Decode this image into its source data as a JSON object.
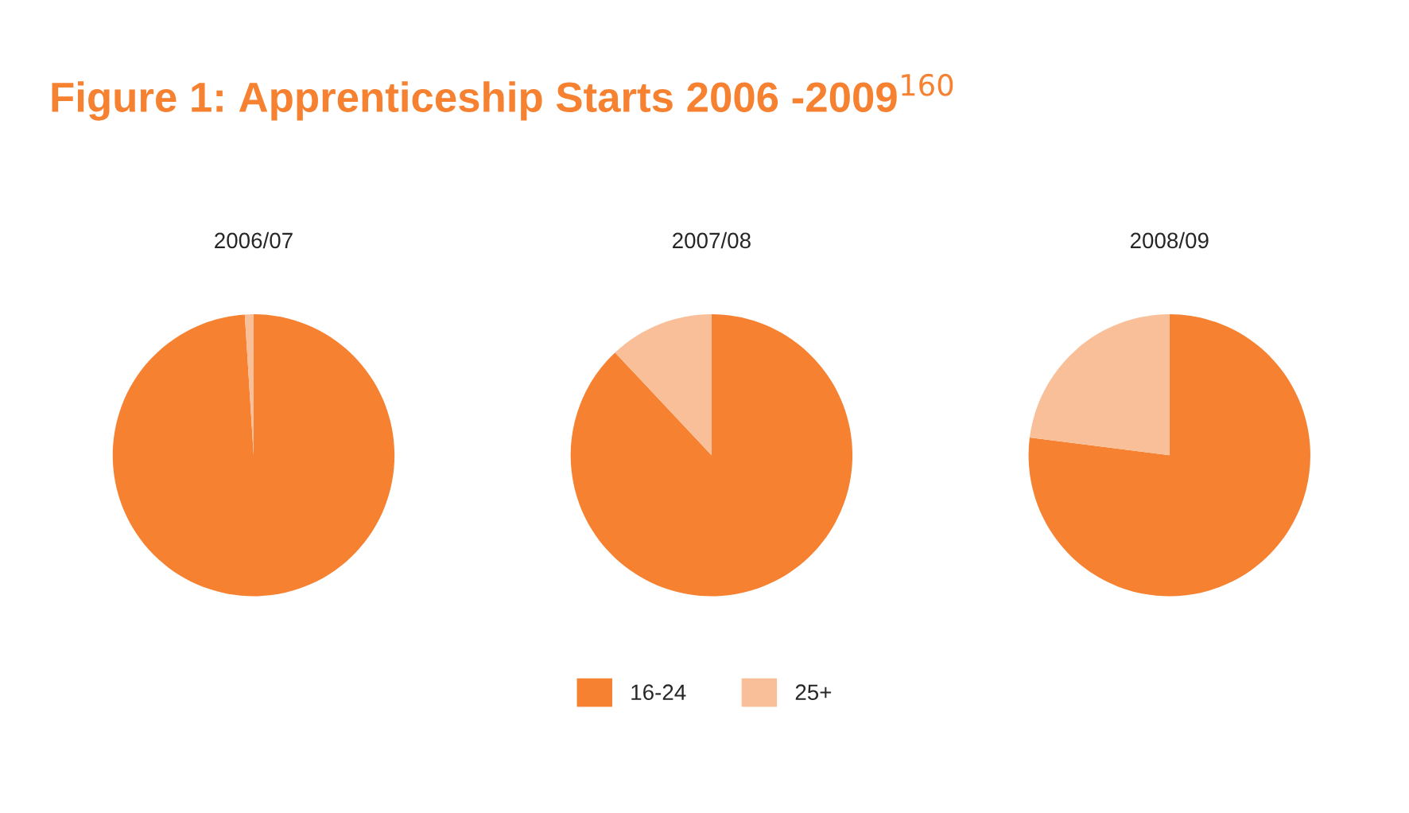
{
  "chart_data": [
    {
      "type": "pie",
      "title": "Figure 1: Apprenticeship Starts 2006 -2009$^{160}$",
      "subtitle": "2006/07",
      "categories": [
        "16-24",
        "25+"
      ],
      "values": [
        99,
        1
      ],
      "colors": [
        "#f58131",
        "#f9bf98"
      ],
      "legend": "bottom"
    },
    {
      "type": "pie",
      "subtitle": "2007/08",
      "categories": [
        null,
        null
      ],
      "values": [
        88,
        12
      ],
      "colors": [
        "#f58131",
        "#f9bf98"
      ]
    },
    {
      "type": "pie",
      "subtitle": "2008/09",
      "categories": [
        null,
        null
      ],
      "values": [
        77,
        23
      ],
      "colors": [
        "#f58131",
        "#f9bf98"
      ]
    }
  ]
}
